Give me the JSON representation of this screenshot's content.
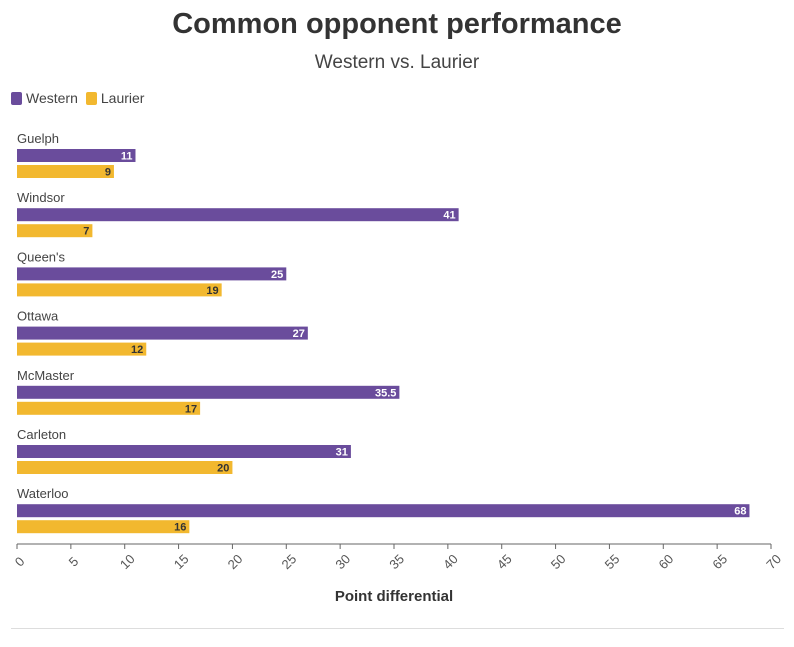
{
  "chart_data": {
    "type": "bar",
    "orientation": "horizontal",
    "title": "Common opponent performance",
    "subtitle": "Western vs. Laurier",
    "xlabel": "Point differential",
    "ylabel": "",
    "xlim": [
      0,
      70
    ],
    "xticks": [
      0,
      5,
      10,
      15,
      20,
      25,
      30,
      35,
      40,
      45,
      50,
      55,
      60,
      65,
      70
    ],
    "categories": [
      "Guelph",
      "Windsor",
      "Queen's",
      "Ottawa",
      "McMaster",
      "Carleton",
      "Waterloo"
    ],
    "series": [
      {
        "name": "Western",
        "color": "#6a4c9c",
        "values": [
          11,
          41,
          25,
          27,
          35.5,
          31,
          68
        ]
      },
      {
        "name": "Laurier",
        "color": "#f2b82f",
        "values": [
          9,
          7,
          19,
          12,
          17,
          20,
          16
        ]
      }
    ],
    "grid": false,
    "legend_position": "top-left",
    "data_labels": true
  }
}
